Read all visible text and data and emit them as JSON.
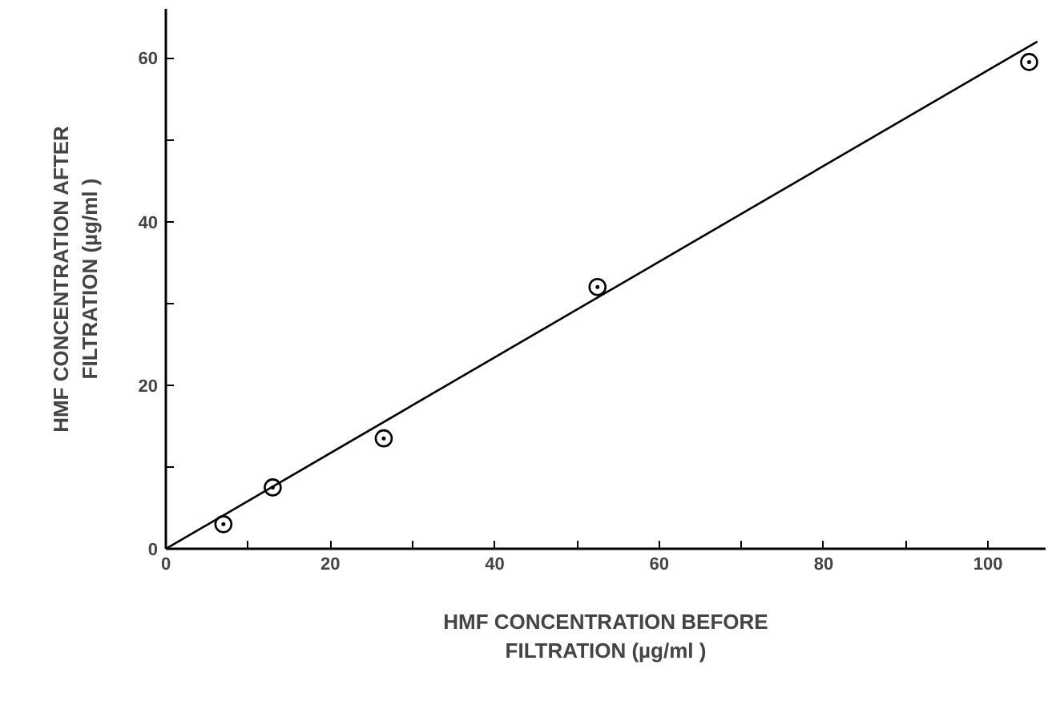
{
  "chart_data": {
    "type": "scatter",
    "xlabel": "HMF CONCENTRATION BEFORE\nFILTRATION (µg/ml )",
    "ylabel": "HMF CONCENTRATION AFTER\nFILTRATION (µg/ml )",
    "xlim": [
      0,
      107
    ],
    "ylim": [
      0,
      66
    ],
    "xticks": [
      0,
      {
        "value": 10,
        "label": null
      },
      20,
      {
        "value": 30,
        "label": null
      },
      40,
      {
        "value": 50,
        "label": null
      },
      60,
      {
        "value": 70,
        "label": null
      },
      80,
      {
        "value": 90,
        "label": null
      },
      100
    ],
    "yticks": [
      0,
      {
        "value": 10,
        "label": null
      },
      20,
      {
        "value": 30,
        "label": null
      },
      40,
      {
        "value": 50,
        "label": null
      },
      60
    ],
    "grid": false,
    "series": [
      {
        "marker": "circle",
        "color": "#000000",
        "x": [
          7,
          13,
          26.5,
          52.5,
          105
        ],
        "values": [
          3,
          7.5,
          13.5,
          32,
          59.5
        ]
      },
      {
        "type": "line",
        "marker": "none",
        "color": "#000000",
        "x": [
          0,
          106
        ],
        "values": [
          0,
          62
        ]
      }
    ]
  }
}
